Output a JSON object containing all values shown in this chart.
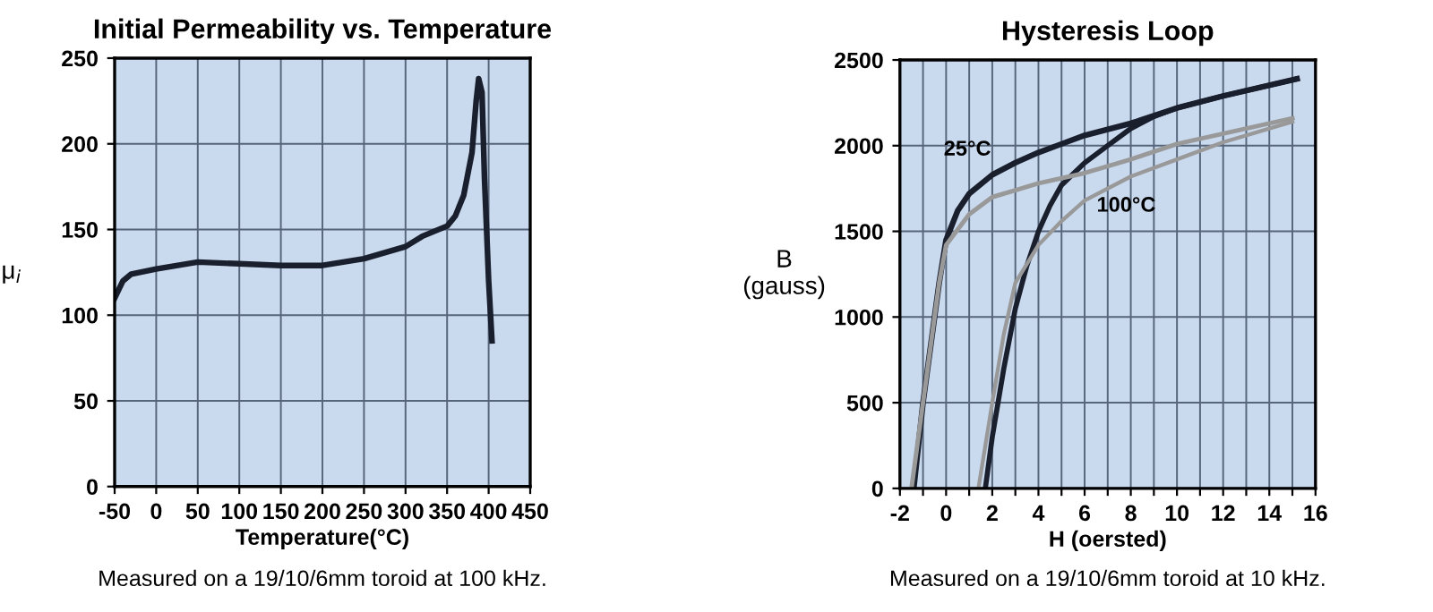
{
  "chart_data": [
    {
      "type": "line",
      "title": "Initial Permeability vs. Temperature",
      "xlabel": "Temperature(°C)",
      "ylabel": "μ$_{i}$",
      "xlim": [
        -50,
        450
      ],
      "ylim": [
        0,
        250
      ],
      "xticks": [
        -50,
        0,
        50,
        100,
        150,
        200,
        250,
        300,
        350,
        400,
        450
      ],
      "yticks": [
        0,
        50,
        100,
        150,
        200,
        250
      ],
      "grid": true,
      "legend": false,
      "marker": "none",
      "line_style": "solid",
      "series": [
        {
          "color": "#1a1f2e",
          "x": [
            -50,
            -40,
            -30,
            0,
            50,
            100,
            150,
            200,
            250,
            300,
            320,
            350,
            360,
            370,
            380,
            385,
            388,
            392,
            395,
            400,
            404
          ],
          "values": [
            110,
            120,
            124,
            127,
            131,
            130,
            129,
            129,
            133,
            140,
            146,
            152,
            158,
            170,
            195,
            225,
            238,
            230,
            180,
            120,
            85
          ]
        }
      ],
      "annotations": [
        "Measured on a 19/10/6mm toroid at 100 kHz."
      ]
    },
    {
      "type": "line",
      "title": "Hysteresis Loop",
      "xlabel": "H (oersted)",
      "ylabel": "B\n(gauss)",
      "xlim": [
        -2,
        16
      ],
      "ylim": [
        0,
        2500
      ],
      "xticks": [
        -2,
        {
          "value": -1,
          "label": null
        },
        0,
        {
          "value": 1,
          "label": null
        },
        2,
        {
          "value": 3,
          "label": null
        },
        4,
        {
          "value": 5,
          "label": null
        },
        6,
        {
          "value": 7,
          "label": null
        },
        8,
        {
          "value": 9,
          "label": null
        },
        10,
        {
          "value": 11,
          "label": null
        },
        12,
        {
          "value": 13,
          "label": null
        },
        14,
        {
          "value": 15,
          "label": null
        },
        16
      ],
      "yticks": [
        0,
        500,
        1000,
        1500,
        2000,
        2500
      ],
      "grid": true,
      "legend": false,
      "marker": "none",
      "line_style": "solid",
      "series": [
        {
          "name": "25°C",
          "color": "#1a1f2e",
          "x": [
            15.2,
            12,
            10,
            8,
            6,
            5,
            4,
            3,
            2,
            1,
            0.5,
            0,
            -0.3,
            -0.6,
            -1,
            -1.4
          ],
          "values": [
            2390,
            2290,
            2220,
            2130,
            2060,
            2010,
            1960,
            1900,
            1830,
            1720,
            1620,
            1450,
            1200,
            900,
            500,
            0
          ]
        },
        {
          "color": "#1a1f2e",
          "x": [
            1.7,
            2,
            2.5,
            3,
            3.5,
            4,
            4.5,
            5,
            6,
            7,
            8,
            9,
            10,
            12,
            15.2
          ],
          "values": [
            0,
            300,
            700,
            1050,
            1300,
            1500,
            1650,
            1770,
            1900,
            2000,
            2100,
            2170,
            2220,
            2290,
            2390
          ]
        },
        {
          "color": "#999999",
          "x": [
            15,
            12,
            10,
            8,
            6,
            4,
            3,
            2,
            1,
            0,
            -0.3,
            -0.7,
            -1.1,
            -1.5
          ],
          "values": [
            2160,
            2070,
            2010,
            1920,
            1840,
            1780,
            1740,
            1700,
            1600,
            1420,
            1200,
            800,
            400,
            0
          ]
        },
        {
          "name": "100°C",
          "color": "#999999",
          "x": [
            1.4,
            2,
            2.5,
            3,
            4,
            5,
            6,
            8,
            10,
            12,
            15
          ],
          "values": [
            0,
            500,
            900,
            1200,
            1420,
            1560,
            1680,
            1820,
            1920,
            2020,
            2140
          ]
        }
      ],
      "annotations": [
        "Measured on a 19/10/6mm toroid at 10 kHz."
      ]
    }
  ]
}
